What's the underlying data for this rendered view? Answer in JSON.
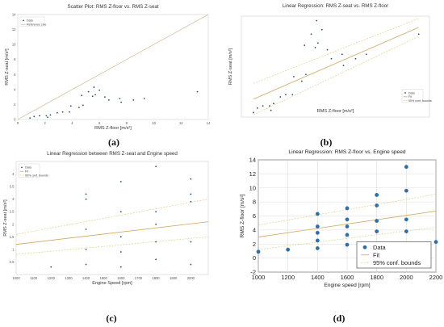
{
  "colors": {
    "marker": "#2f6fa8",
    "marker_dark": "#1f4f7a",
    "fit_line": "#d2a65a",
    "conf_line": "#e4cf86",
    "ref_line": "#d4b48a",
    "grid": "#dcdcdc",
    "frame": "#b8b8b8"
  },
  "chart_data": [
    {
      "panel": "(a)",
      "type": "scatter",
      "title": "Scatter Plot: RMS Z-floor vs. RMS Z-seat",
      "xlabel": "RMS Z-floor [m/s²]",
      "ylabel": "RMS Z-seat [m/s²]",
      "xlim": [
        0,
        14
      ],
      "ylim": [
        0,
        14
      ],
      "xticks": [
        0,
        2,
        4,
        6,
        8,
        10,
        12,
        14
      ],
      "yticks": [
        0,
        2,
        4,
        6,
        8,
        10,
        12,
        14
      ],
      "legend": [
        "Data",
        "Reference Line"
      ],
      "legend_position": "top-left",
      "reference_line": {
        "x": [
          0,
          14
        ],
        "y": [
          0,
          14
        ]
      },
      "x": [
        0.9,
        1.2,
        1.6,
        2.1,
        2.2,
        2.4,
        2.9,
        3.3,
        3.8,
        3.9,
        4.5,
        4.7,
        4.8,
        5.2,
        5.5,
        5.6,
        5.7,
        6.0,
        6.4,
        6.7,
        7.5,
        7.6,
        8.5,
        9.3,
        13.2
      ],
      "y": [
        0.2,
        0.4,
        0.5,
        0.5,
        0.3,
        0.6,
        0.9,
        1.0,
        1.0,
        1.8,
        1.6,
        3.2,
        1.9,
        3.7,
        3.1,
        4.3,
        3.3,
        3.9,
        3.0,
        2.6,
        2.8,
        2.3,
        2.6,
        2.8,
        3.7
      ]
    },
    {
      "panel": "(b)",
      "type": "scatter",
      "title": "Linear Regression: RMS Z-seat vs. RMS Z-floor",
      "xlabel": "RMS Z-floor [m/s²]",
      "ylabel": "RMS Z-seat [m/s²]",
      "xlim": [
        0,
        14
      ],
      "ylim": [
        0,
        4.5
      ],
      "legend": [
        "Data",
        "Fit",
        "95% conf. bounds"
      ],
      "legend_position": "bottom-right",
      "x": [
        0.9,
        1.2,
        1.6,
        2.1,
        2.2,
        2.4,
        2.9,
        3.3,
        3.8,
        3.9,
        4.5,
        4.7,
        4.8,
        5.2,
        5.5,
        5.6,
        5.7,
        6.0,
        6.4,
        6.7,
        7.5,
        7.6,
        8.5,
        9.3,
        13.2
      ],
      "y": [
        0.2,
        0.4,
        0.5,
        0.5,
        0.3,
        0.6,
        0.9,
        1.0,
        1.0,
        1.8,
        1.6,
        3.2,
        1.9,
        3.7,
        3.1,
        4.3,
        3.3,
        3.9,
        3.0,
        2.6,
        2.8,
        2.3,
        2.6,
        2.8,
        3.7
      ],
      "fit": {
        "x": [
          0.9,
          13.2
        ],
        "y": [
          0.8,
          4.0
        ]
      },
      "conf_upper": {
        "x": [
          0.9,
          13.2
        ],
        "y": [
          1.5,
          4.4
        ]
      },
      "conf_lower": {
        "x": [
          0.9,
          13.2
        ],
        "y": [
          0.1,
          3.6
        ]
      }
    },
    {
      "panel": "(c)",
      "type": "scatter",
      "title": "Linear Regression between RMS Z-seat and Engine speed",
      "xlabel": "Engine Speed [rpm]",
      "ylabel": "RMS Z-seat [m/s²]",
      "xlim": [
        1000,
        2100
      ],
      "ylim": [
        0,
        4.5
      ],
      "xticks": [
        1000,
        1100,
        1200,
        1300,
        1400,
        1500,
        1600,
        1700,
        1800,
        1900,
        2000
      ],
      "yticks": [
        0.5,
        1.0,
        1.5,
        2.0,
        2.5,
        3.0,
        3.5,
        4.0
      ],
      "legend": [
        "Data",
        "Fit",
        "95% conf. bounds"
      ],
      "legend_position": "top-left",
      "x": [
        1200,
        1400,
        1400,
        1400,
        1400,
        1400,
        1600,
        1600,
        1600,
        1600,
        1600,
        1800,
        1800,
        1800,
        1800,
        1800,
        2000,
        2000,
        2000,
        2000,
        2000
      ],
      "y": [
        0.3,
        3.2,
        3.0,
        1.8,
        1.0,
        0.4,
        3.7,
        2.5,
        1.5,
        0.9,
        0.3,
        4.3,
        2.5,
        2.0,
        1.3,
        0.6,
        3.8,
        3.2,
        2.9,
        1.3,
        0.4
      ],
      "fit": {
        "x": [
          1000,
          2100
        ],
        "y": [
          1.2,
          2.1
        ]
      },
      "conf_upper": {
        "x": [
          1000,
          2100
        ],
        "y": [
          1.6,
          3.0
        ]
      },
      "conf_lower": {
        "x": [
          1000,
          2100
        ],
        "y": [
          0.8,
          1.5
        ]
      }
    },
    {
      "panel": "(d)",
      "type": "scatter",
      "title": "Linear Regression: RMS Z-floor vs. Engine speed",
      "xlabel": "Engine speed [rpm]",
      "ylabel": "RMS Z-floor [m/s²]",
      "xlim": [
        1000,
        2200
      ],
      "ylim": [
        -2,
        14
      ],
      "xticks": [
        1000,
        1200,
        1400,
        1600,
        1800,
        2000,
        2200
      ],
      "yticks": [
        -2,
        0,
        2,
        4,
        6,
        8,
        10,
        12,
        14
      ],
      "grid": true,
      "legend": [
        "Data",
        "Fit",
        "95% conf. bounds"
      ],
      "legend_position": "bottom-right",
      "x": [
        1000,
        1200,
        1400,
        1400,
        1400,
        1400,
        1400,
        1600,
        1600,
        1600,
        1600,
        1600,
        1800,
        1800,
        1800,
        1800,
        1800,
        2000,
        2000,
        2000,
        2000,
        2000,
        2200
      ],
      "y": [
        0.9,
        1.2,
        6.3,
        4.5,
        3.6,
        2.5,
        1.4,
        7.1,
        5.5,
        4.5,
        3.3,
        1.9,
        9.0,
        7.5,
        5.3,
        3.8,
        1.9,
        13.0,
        9.6,
        5.5,
        3.8,
        1.9,
        2.3
      ],
      "fit": {
        "x": [
          1000,
          2200
        ],
        "y": [
          3.0,
          6.7
        ]
      },
      "conf_upper": {
        "x": [
          1000,
          2200
        ],
        "y": [
          4.7,
          9.1
        ]
      },
      "conf_lower": {
        "x": [
          1000,
          2200
        ],
        "y": [
          1.2,
          4.4
        ]
      }
    }
  ]
}
